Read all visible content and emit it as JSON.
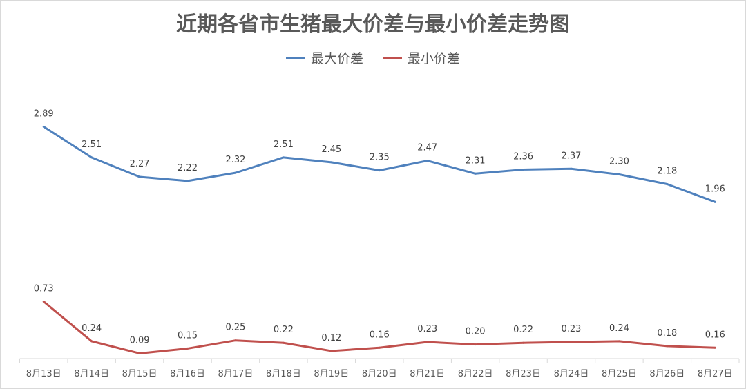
{
  "chart_data": {
    "type": "line",
    "title": "近期各省市生猪最大价差与最小价差走势图",
    "xlabel": "",
    "ylabel": "",
    "categories": [
      "8月13日",
      "8月14日",
      "8月15日",
      "8月16日",
      "8月17日",
      "8月18日",
      "8月19日",
      "8月20日",
      "8月21日",
      "8月22日",
      "8月23日",
      "8月24日",
      "8月25日",
      "8月26日",
      "8月27日"
    ],
    "series": [
      {
        "name": "最大价差",
        "color": "#4f81bd",
        "values": [
          2.89,
          2.51,
          2.27,
          2.22,
          2.32,
          2.51,
          2.45,
          2.35,
          2.47,
          2.31,
          2.36,
          2.37,
          2.3,
          2.18,
          1.96
        ]
      },
      {
        "name": "最小价差",
        "color": "#c0504d",
        "values": [
          0.73,
          0.24,
          0.09,
          0.15,
          0.25,
          0.22,
          0.12,
          0.16,
          0.23,
          0.2,
          0.22,
          0.23,
          0.24,
          0.18,
          0.16
        ]
      }
    ],
    "ylim": [
      0,
      3.2
    ],
    "grid": false,
    "y_axis_visible": false,
    "legend_position": "top",
    "data_labels": true
  }
}
